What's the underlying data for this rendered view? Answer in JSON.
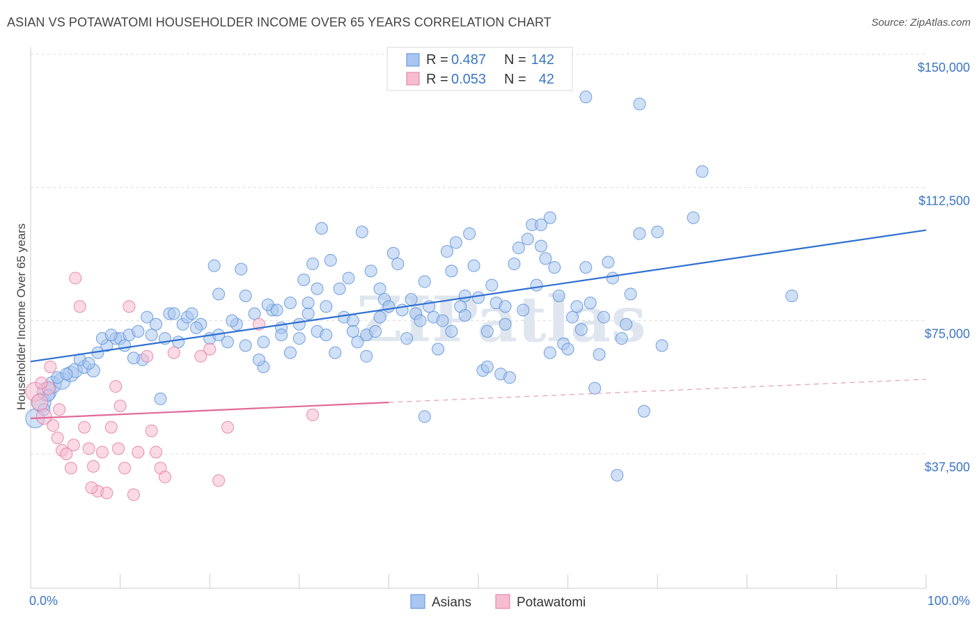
{
  "title": "ASIAN VS POTAWATOMI HOUSEHOLDER INCOME OVER 65 YEARS CORRELATION CHART",
  "source": "Source: ZipAtlas.com",
  "watermark": "ZIPatlas",
  "legend": {
    "rows": [
      {
        "r_label": "R =",
        "r_value": "0.487",
        "n_label": "N =",
        "n_value": "142",
        "color": "#a9c6f0"
      },
      {
        "r_label": "R =",
        "r_value": "0.053",
        "n_label": "N =",
        "n_value": "42",
        "color": "#f7bcd0"
      }
    ]
  },
  "chart_data": {
    "type": "scatter",
    "title": "ASIAN VS POTAWATOMI HOUSEHOLDER INCOME OVER 65 YEARS CORRELATION CHART",
    "xlabel": "",
    "ylabel": "Householder Income Over 65 years",
    "xlim": [
      0,
      100
    ],
    "ylim": [
      0,
      150000
    ],
    "x_tick_labels": [
      "0.0%",
      "100.0%"
    ],
    "y_ticks": [
      37500,
      75000,
      112500,
      150000
    ],
    "y_tick_labels": [
      "$37,500",
      "$75,000",
      "$112,500",
      "$150,000"
    ],
    "grid": true,
    "legend_position": "top-center",
    "series": [
      {
        "name": "Asians",
        "color": "#5b8fd6",
        "fill": "#a9c6f0",
        "trend": {
          "x0": 0,
          "y0": 63500,
          "x1": 100,
          "y1": 100500
        },
        "points": [
          [
            0.5,
            47500,
            1.6
          ],
          [
            1.2,
            52000,
            1.6
          ],
          [
            1.8,
            55000,
            1.6
          ],
          [
            2.5,
            57000,
            1.4
          ],
          [
            3.5,
            58000,
            1.4
          ],
          [
            4.5,
            60000,
            1.3
          ],
          [
            5.0,
            61000,
            1.2
          ],
          [
            6.0,
            62000,
            1.1
          ],
          [
            7.0,
            61000,
            1.1
          ],
          [
            7.5,
            66000,
            1.0
          ],
          [
            8.5,
            68000,
            1.0
          ],
          [
            9.5,
            70000,
            1.0
          ],
          [
            10.0,
            70000,
            1.0
          ],
          [
            11.0,
            71000,
            1.0
          ],
          [
            12.0,
            72000,
            1.0
          ],
          [
            12.5,
            64000,
            1.0
          ],
          [
            13.0,
            76000,
            1.0
          ],
          [
            13.5,
            71000,
            1.0
          ],
          [
            14.0,
            74000,
            1.0
          ],
          [
            15.0,
            70000,
            1.0
          ],
          [
            15.5,
            77000,
            1.0
          ],
          [
            16.0,
            77000,
            1.0
          ],
          [
            17.0,
            74000,
            1.0
          ],
          [
            17.5,
            76000,
            1.0
          ],
          [
            18.0,
            77000,
            1.0
          ],
          [
            19.0,
            74000,
            1.0
          ],
          [
            20.0,
            70000,
            1.0
          ],
          [
            21.0,
            71000,
            1.0
          ],
          [
            22.0,
            69000,
            1.0
          ],
          [
            23.0,
            74000,
            1.0
          ],
          [
            24.0,
            68000,
            1.0
          ],
          [
            25.0,
            77000,
            1.0
          ],
          [
            26.0,
            69000,
            1.0
          ],
          [
            27.0,
            78000,
            1.0
          ],
          [
            28.0,
            73000,
            1.0
          ],
          [
            29.0,
            66000,
            1.0
          ],
          [
            30.0,
            70000,
            1.0
          ],
          [
            31.0,
            77000,
            1.0
          ],
          [
            32.0,
            72000,
            1.0
          ],
          [
            33.0,
            79000,
            1.0
          ],
          [
            14.5,
            53000,
            1.0
          ],
          [
            20.5,
            90500,
            1.0
          ],
          [
            21.0,
            82500,
            1.0
          ],
          [
            23.5,
            89500,
            1.0
          ],
          [
            24.0,
            82000,
            1.0
          ],
          [
            26.5,
            79500,
            1.0
          ],
          [
            27.5,
            78000,
            1.0
          ],
          [
            28.0,
            71000,
            1.0
          ],
          [
            29.0,
            80000,
            1.0
          ],
          [
            30.0,
            74000,
            1.0
          ],
          [
            30.5,
            86500,
            1.0
          ],
          [
            31.0,
            80000,
            1.0
          ],
          [
            31.5,
            91000,
            1.0
          ],
          [
            32.0,
            84000,
            1.0
          ],
          [
            32.5,
            101000,
            1.0
          ],
          [
            33.0,
            71000,
            1.0
          ],
          [
            33.5,
            92000,
            1.0
          ],
          [
            34.0,
            66000,
            1.0
          ],
          [
            34.5,
            84000,
            1.0
          ],
          [
            35.0,
            76000,
            1.0
          ],
          [
            35.5,
            87000,
            1.0
          ],
          [
            36.0,
            75000,
            1.0
          ],
          [
            36.5,
            69000,
            1.0
          ],
          [
            37.0,
            100000,
            1.0
          ],
          [
            37.5,
            71000,
            1.0
          ],
          [
            38.0,
            89000,
            1.0
          ],
          [
            38.5,
            72000,
            1.0
          ],
          [
            39.0,
            84000,
            1.0
          ],
          [
            39.5,
            81000,
            1.0
          ],
          [
            40.0,
            79000,
            1.0
          ],
          [
            40.5,
            94000,
            1.0
          ],
          [
            41.0,
            91000,
            1.0
          ],
          [
            41.5,
            78000,
            1.0
          ],
          [
            42.0,
            70000,
            1.0
          ],
          [
            42.5,
            81000,
            1.0
          ],
          [
            43.0,
            77000,
            1.0
          ],
          [
            43.5,
            75000,
            1.0
          ],
          [
            44.0,
            86000,
            1.0
          ],
          [
            44.5,
            79000,
            1.0
          ],
          [
            45.0,
            76000,
            1.0
          ],
          [
            45.5,
            67000,
            1.0
          ],
          [
            46.0,
            75000,
            1.0
          ],
          [
            46.5,
            94500,
            1.0
          ],
          [
            47.0,
            89000,
            1.0
          ],
          [
            47.5,
            97000,
            1.0
          ],
          [
            48.0,
            79000,
            1.0
          ],
          [
            48.5,
            82000,
            1.0
          ],
          [
            49.0,
            99500,
            1.0
          ],
          [
            49.5,
            90500,
            1.0
          ],
          [
            50.0,
            81500,
            1.0
          ],
          [
            50.5,
            61000,
            1.0
          ],
          [
            51.0,
            72000,
            1.0
          ],
          [
            51.5,
            85000,
            1.0
          ],
          [
            52.0,
            80000,
            1.0
          ],
          [
            52.5,
            60000,
            1.0
          ],
          [
            53.0,
            79000,
            1.0
          ],
          [
            53.5,
            59000,
            1.0
          ],
          [
            54.0,
            91000,
            1.0
          ],
          [
            54.5,
            95500,
            1.0
          ],
          [
            55.0,
            78000,
            1.0
          ],
          [
            55.5,
            98000,
            1.0
          ],
          [
            56.0,
            102000,
            1.0
          ],
          [
            56.5,
            85000,
            1.0
          ],
          [
            57.0,
            96000,
            1.0
          ],
          [
            57.5,
            92500,
            1.0
          ],
          [
            58.0,
            104000,
            1.0
          ],
          [
            58.5,
            90000,
            1.0
          ],
          [
            59.0,
            82000,
            1.0
          ],
          [
            59.5,
            68500,
            1.0
          ],
          [
            60.0,
            67000,
            1.0
          ],
          [
            60.5,
            76000,
            1.0
          ],
          [
            61.0,
            79000,
            1.0
          ],
          [
            61.5,
            72500,
            1.0
          ],
          [
            62.0,
            90000,
            1.0
          ],
          [
            62.5,
            80000,
            1.0
          ],
          [
            63.0,
            56000,
            1.0
          ],
          [
            63.5,
            65500,
            1.0
          ],
          [
            64.0,
            76000,
            1.0
          ],
          [
            64.5,
            91500,
            1.0
          ],
          [
            65.0,
            87000,
            1.0
          ],
          [
            65.5,
            31500,
            1.0
          ],
          [
            66.5,
            74000,
            1.0
          ],
          [
            67.0,
            82500,
            1.0
          ],
          [
            68.0,
            99500,
            1.0
          ],
          [
            68.5,
            49500,
            1.0
          ],
          [
            70.0,
            100000,
            1.0
          ],
          [
            70.5,
            68000,
            1.0
          ],
          [
            74.0,
            104000,
            1.0
          ],
          [
            75.0,
            117000,
            1.0
          ],
          [
            62.0,
            138000,
            1.0
          ],
          [
            68.0,
            136000,
            1.0
          ],
          [
            85.0,
            82000,
            1.0
          ],
          [
            57.0,
            102000,
            1.0
          ],
          [
            37.5,
            65000,
            1.0
          ],
          [
            26.0,
            62000,
            1.0
          ],
          [
            44.0,
            48000,
            1.0
          ],
          [
            11.5,
            64500,
            1.0
          ],
          [
            8.0,
            70000,
            1.0
          ],
          [
            5.5,
            64000,
            1.0
          ],
          [
            3.0,
            59000,
            1.0
          ],
          [
            1.5,
            50000,
            1.0
          ],
          [
            2.0,
            54000,
            1.0
          ],
          [
            4.0,
            60000,
            1.0
          ],
          [
            6.5,
            63000,
            1.0
          ],
          [
            9.0,
            71000,
            1.0
          ],
          [
            10.5,
            68000,
            1.0
          ],
          [
            16.5,
            69000,
            1.0
          ],
          [
            18.5,
            73000,
            1.0
          ],
          [
            25.5,
            64000,
            1.0
          ],
          [
            36.0,
            72000,
            1.0
          ],
          [
            39.0,
            76000,
            1.0
          ],
          [
            48.5,
            76500,
            1.0
          ],
          [
            51.0,
            62000,
            1.0
          ],
          [
            53.0,
            74000,
            1.0
          ],
          [
            58.0,
            66000,
            1.0
          ],
          [
            66.0,
            70000,
            1.0
          ],
          [
            47.0,
            72000,
            1.0
          ],
          [
            22.5,
            75000,
            1.0
          ]
        ]
      },
      {
        "name": "Potawatomi",
        "color": "#e07aa2",
        "fill": "#f7bcd0",
        "trend": {
          "x0": 0,
          "y0": 47500,
          "x1": 40,
          "y1": 52000,
          "x_dash_end": 100,
          "y_dash_end": 58500
        },
        "points": [
          [
            0.5,
            55000,
            1.6
          ],
          [
            1.0,
            52000,
            1.4
          ],
          [
            1.5,
            48000,
            1.3
          ],
          [
            2.0,
            56000,
            1.1
          ],
          [
            2.5,
            45500,
            1.0
          ],
          [
            3.0,
            42000,
            1.0
          ],
          [
            3.5,
            38500,
            1.0
          ],
          [
            4.0,
            37500,
            1.0
          ],
          [
            4.5,
            33500,
            1.0
          ],
          [
            5.0,
            87000,
            1.0
          ],
          [
            5.5,
            79000,
            1.0
          ],
          [
            6.0,
            45000,
            1.0
          ],
          [
            6.5,
            39000,
            1.0
          ],
          [
            7.0,
            34000,
            1.0
          ],
          [
            7.5,
            27000,
            1.0
          ],
          [
            8.0,
            38000,
            1.0
          ],
          [
            8.5,
            26500,
            1.0
          ],
          [
            9.0,
            45000,
            1.0
          ],
          [
            9.5,
            56500,
            1.0
          ],
          [
            10.0,
            51000,
            1.0
          ],
          [
            10.5,
            33500,
            1.0
          ],
          [
            11.0,
            79000,
            1.0
          ],
          [
            11.5,
            26000,
            1.0
          ],
          [
            12.0,
            38000,
            1.0
          ],
          [
            13.0,
            65000,
            1.0
          ],
          [
            13.5,
            44000,
            1.0
          ],
          [
            14.0,
            38000,
            1.0
          ],
          [
            14.5,
            33500,
            1.0
          ],
          [
            15.0,
            31000,
            1.0
          ],
          [
            16.0,
            66000,
            1.0
          ],
          [
            19.0,
            65000,
            1.0
          ],
          [
            20.0,
            67000,
            1.0
          ],
          [
            21.0,
            30000,
            1.0
          ],
          [
            22.0,
            45000,
            1.0
          ],
          [
            25.5,
            74000,
            1.0
          ],
          [
            31.5,
            48500,
            1.0
          ],
          [
            2.2,
            62000,
            1.0
          ],
          [
            1.2,
            57500,
            1.0
          ],
          [
            3.2,
            50000,
            1.0
          ],
          [
            4.8,
            40000,
            1.0
          ],
          [
            6.8,
            28000,
            1.0
          ],
          [
            9.8,
            39000,
            1.0
          ]
        ]
      }
    ]
  },
  "bottom_legend": [
    {
      "label": "Asians",
      "color": "#a9c6f0"
    },
    {
      "label": "Potawatomi",
      "color": "#f7bcd0"
    }
  ]
}
